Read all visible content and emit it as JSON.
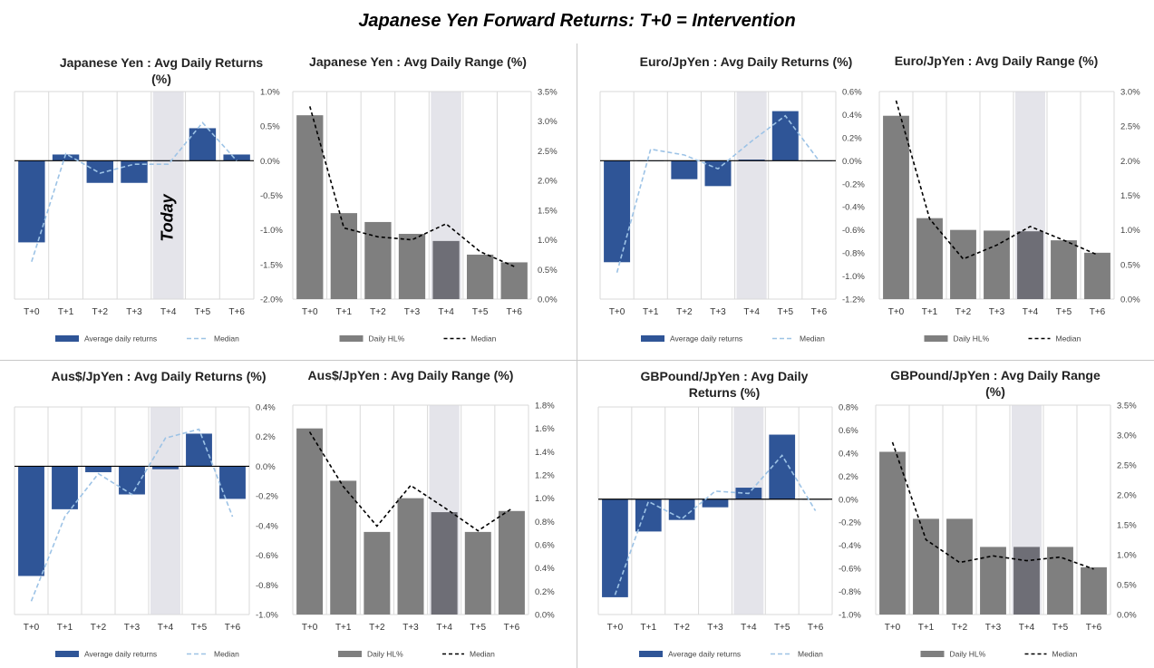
{
  "title": "Japanese Yen Forward Returns: T+0 = Intervention",
  "today_label": "Today",
  "colors": {
    "returns_bar": "#2f5597",
    "range_bar": "#7f7f7f",
    "range_bar_highlight": "#6e6e76",
    "returns_median": "#9dc3e6",
    "range_median": "#000000",
    "highlight_band": "#e4e4ea",
    "grid": "#d9d9d9"
  },
  "chart_data": [
    {
      "type": "bar",
      "title": "Japanese Yen : Avg Daily Returns (%)",
      "categories": [
        "T+0",
        "T+1",
        "T+2",
        "T+3",
        "T+4",
        "T+5",
        "T+6"
      ],
      "series": [
        {
          "name": "Average daily returns",
          "values": [
            -1.18,
            0.09,
            -0.32,
            -0.32,
            0.0,
            0.47,
            0.09
          ]
        },
        {
          "name": "Median",
          "values": [
            -1.46,
            0.1,
            -0.18,
            -0.05,
            -0.05,
            0.55,
            0.0
          ]
        }
      ],
      "ylim": [
        -2.0,
        1.0
      ],
      "yticks": [
        "1.0%",
        "0.5%",
        "0.0%",
        "-0.5%",
        "-1.0%",
        "-1.5%",
        "-2.0%"
      ],
      "legend": "bottom",
      "highlight_category": "T+4",
      "annotation": "Today"
    },
    {
      "type": "bar",
      "title": "Japanese Yen : Avg Daily Range (%)",
      "categories": [
        "T+0",
        "T+1",
        "T+2",
        "T+3",
        "T+4",
        "T+5",
        "T+6"
      ],
      "series": [
        {
          "name": "Daily HL%",
          "values": [
            3.1,
            1.45,
            1.3,
            1.1,
            0.98,
            0.75,
            0.62
          ]
        },
        {
          "name": "Median",
          "values": [
            3.25,
            1.2,
            1.05,
            1.0,
            1.27,
            0.8,
            0.55
          ]
        }
      ],
      "ylim": [
        0,
        3.5
      ],
      "yticks": [
        "3.5%",
        "3.0%",
        "2.5%",
        "2.0%",
        "1.5%",
        "1.0%",
        "0.5%",
        "0.0%"
      ],
      "legend": "bottom",
      "highlight_category": "T+4"
    },
    {
      "type": "bar",
      "title": "Euro/JpYen : Avg Daily Returns (%)",
      "categories": [
        "T+0",
        "T+1",
        "T+2",
        "T+3",
        "T+4",
        "T+5",
        "T+6"
      ],
      "series": [
        {
          "name": "Average daily returns",
          "values": [
            -0.88,
            0.0,
            -0.16,
            -0.22,
            0.01,
            0.43,
            0.0
          ]
        },
        {
          "name": "Median",
          "values": [
            -0.97,
            0.1,
            0.05,
            -0.07,
            0.17,
            0.39,
            0.0
          ]
        }
      ],
      "ylim": [
        -1.2,
        0.6
      ],
      "yticks": [
        "0.6%",
        "0.4%",
        "0.2%",
        "0.0%",
        "-0.2%",
        "-0.4%",
        "-0.6%",
        "-0.8%",
        "-1.0%",
        "-1.2%"
      ],
      "legend": "bottom",
      "highlight_category": "T+4"
    },
    {
      "type": "bar",
      "title": "Euro/JpYen : Avg Daily Range (%)",
      "categories": [
        "T+0",
        "T+1",
        "T+2",
        "T+3",
        "T+4",
        "T+5",
        "T+6"
      ],
      "series": [
        {
          "name": "Daily HL%",
          "values": [
            2.65,
            1.17,
            1.0,
            0.99,
            0.98,
            0.85,
            0.67
          ]
        },
        {
          "name": "Median",
          "values": [
            2.87,
            1.16,
            0.58,
            0.78,
            1.05,
            0.85,
            0.64
          ]
        }
      ],
      "ylim": [
        0,
        3.0
      ],
      "yticks": [
        "3.0%",
        "2.5%",
        "2.0%",
        "1.5%",
        "1.0%",
        "0.5%",
        "0.0%"
      ],
      "legend": "bottom",
      "highlight_category": "T+4"
    },
    {
      "type": "bar",
      "title": "Aus$/JpYen : Avg Daily Returns (%)",
      "categories": [
        "T+0",
        "T+1",
        "T+2",
        "T+3",
        "T+4",
        "T+5",
        "T+6"
      ],
      "series": [
        {
          "name": "Average daily returns",
          "values": [
            -0.74,
            -0.29,
            -0.04,
            -0.19,
            -0.02,
            0.22,
            -0.22
          ]
        },
        {
          "name": "Median",
          "values": [
            -0.91,
            -0.34,
            -0.05,
            -0.19,
            0.19,
            0.25,
            -0.34
          ]
        }
      ],
      "ylim": [
        -1.0,
        0.4
      ],
      "yticks": [
        "0.4%",
        "0.2%",
        "0.0%",
        "-0.2%",
        "-0.4%",
        "-0.6%",
        "-0.8%",
        "-1.0%"
      ],
      "legend": "bottom",
      "highlight_category": "T+4"
    },
    {
      "type": "bar",
      "title": "Aus$/JpYen : Avg Daily Range (%)",
      "categories": [
        "T+0",
        "T+1",
        "T+2",
        "T+3",
        "T+4",
        "T+5",
        "T+6"
      ],
      "series": [
        {
          "name": "Daily HL%",
          "values": [
            1.6,
            1.15,
            0.71,
            1.0,
            0.88,
            0.71,
            0.89
          ]
        },
        {
          "name": "Median",
          "values": [
            1.57,
            1.1,
            0.76,
            1.11,
            0.92,
            0.72,
            0.91
          ]
        }
      ],
      "ylim": [
        0,
        1.8
      ],
      "yticks": [
        "1.8%",
        "1.6%",
        "1.4%",
        "1.2%",
        "1.0%",
        "0.8%",
        "0.6%",
        "0.4%",
        "0.2%",
        "0.0%"
      ],
      "legend": "bottom",
      "highlight_category": "T+4"
    },
    {
      "type": "bar",
      "title": "GBPound/JpYen : Avg Daily Returns (%)",
      "categories": [
        "T+0",
        "T+1",
        "T+2",
        "T+3",
        "T+4",
        "T+5",
        "T+6"
      ],
      "series": [
        {
          "name": "Average daily returns",
          "values": [
            -0.85,
            -0.28,
            -0.18,
            -0.07,
            0.1,
            0.56,
            0.0
          ]
        },
        {
          "name": "Median",
          "values": [
            -0.83,
            -0.02,
            -0.17,
            0.07,
            0.05,
            0.38,
            -0.1
          ]
        }
      ],
      "ylim": [
        -1.0,
        0.8
      ],
      "yticks": [
        "0.8%",
        "0.6%",
        "0.4%",
        "0.2%",
        "0.0%",
        "-0.2%",
        "-0.4%",
        "-0.6%",
        "-0.8%",
        "-1.0%"
      ],
      "legend": "bottom",
      "highlight_category": "T+4"
    },
    {
      "type": "bar",
      "title": "GBPound/JpYen : Avg Daily Range (%)",
      "categories": [
        "T+0",
        "T+1",
        "T+2",
        "T+3",
        "T+4",
        "T+5",
        "T+6"
      ],
      "series": [
        {
          "name": "Daily HL%",
          "values": [
            2.72,
            1.6,
            1.6,
            1.13,
            1.13,
            1.13,
            0.79
          ]
        },
        {
          "name": "Median",
          "values": [
            2.88,
            1.25,
            0.87,
            0.98,
            0.9,
            0.96,
            0.76
          ]
        }
      ],
      "ylim": [
        0,
        3.5
      ],
      "yticks": [
        "3.5%",
        "3.0%",
        "2.5%",
        "2.0%",
        "1.5%",
        "1.0%",
        "0.5%",
        "0.0%"
      ],
      "legend": "bottom",
      "highlight_category": "T+4"
    }
  ]
}
